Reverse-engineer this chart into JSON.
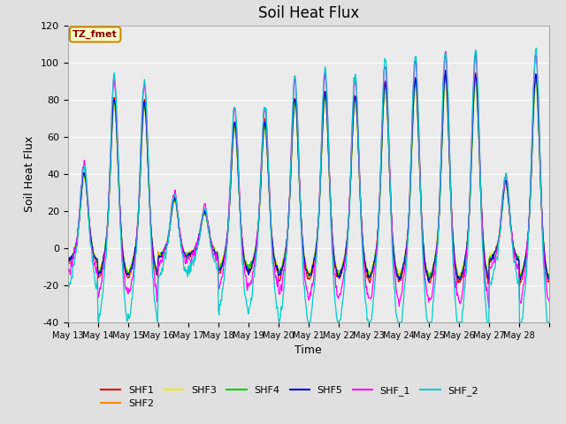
{
  "title": "Soil Heat Flux",
  "xlabel": "Time",
  "ylabel": "Soil Heat Flux",
  "ylim": [
    -40,
    120
  ],
  "yticks": [
    -40,
    -20,
    0,
    20,
    40,
    60,
    80,
    100,
    120
  ],
  "x_tick_labels": [
    "May 13",
    "May 14",
    "May 15",
    "May 16",
    "May 17",
    "May 18",
    "May 19",
    "May 20",
    "May 21",
    "May 22",
    "May 23",
    "May 24",
    "May 25",
    "May 26",
    "May 27",
    "May 28"
  ],
  "series_colors": {
    "SHF1": "#dd0000",
    "SHF2": "#ff8800",
    "SHF3": "#eeee00",
    "SHF4": "#00cc00",
    "SHF5": "#0000dd",
    "SHF_1": "#ff00ff",
    "SHF_2": "#00cccc"
  },
  "legend_label": "TZ_fmet",
  "bg_color": "#e0e0e0",
  "plot_bg": "#ebebeb",
  "title_fontsize": 12,
  "axis_label_fontsize": 9,
  "tick_fontsize": 8
}
